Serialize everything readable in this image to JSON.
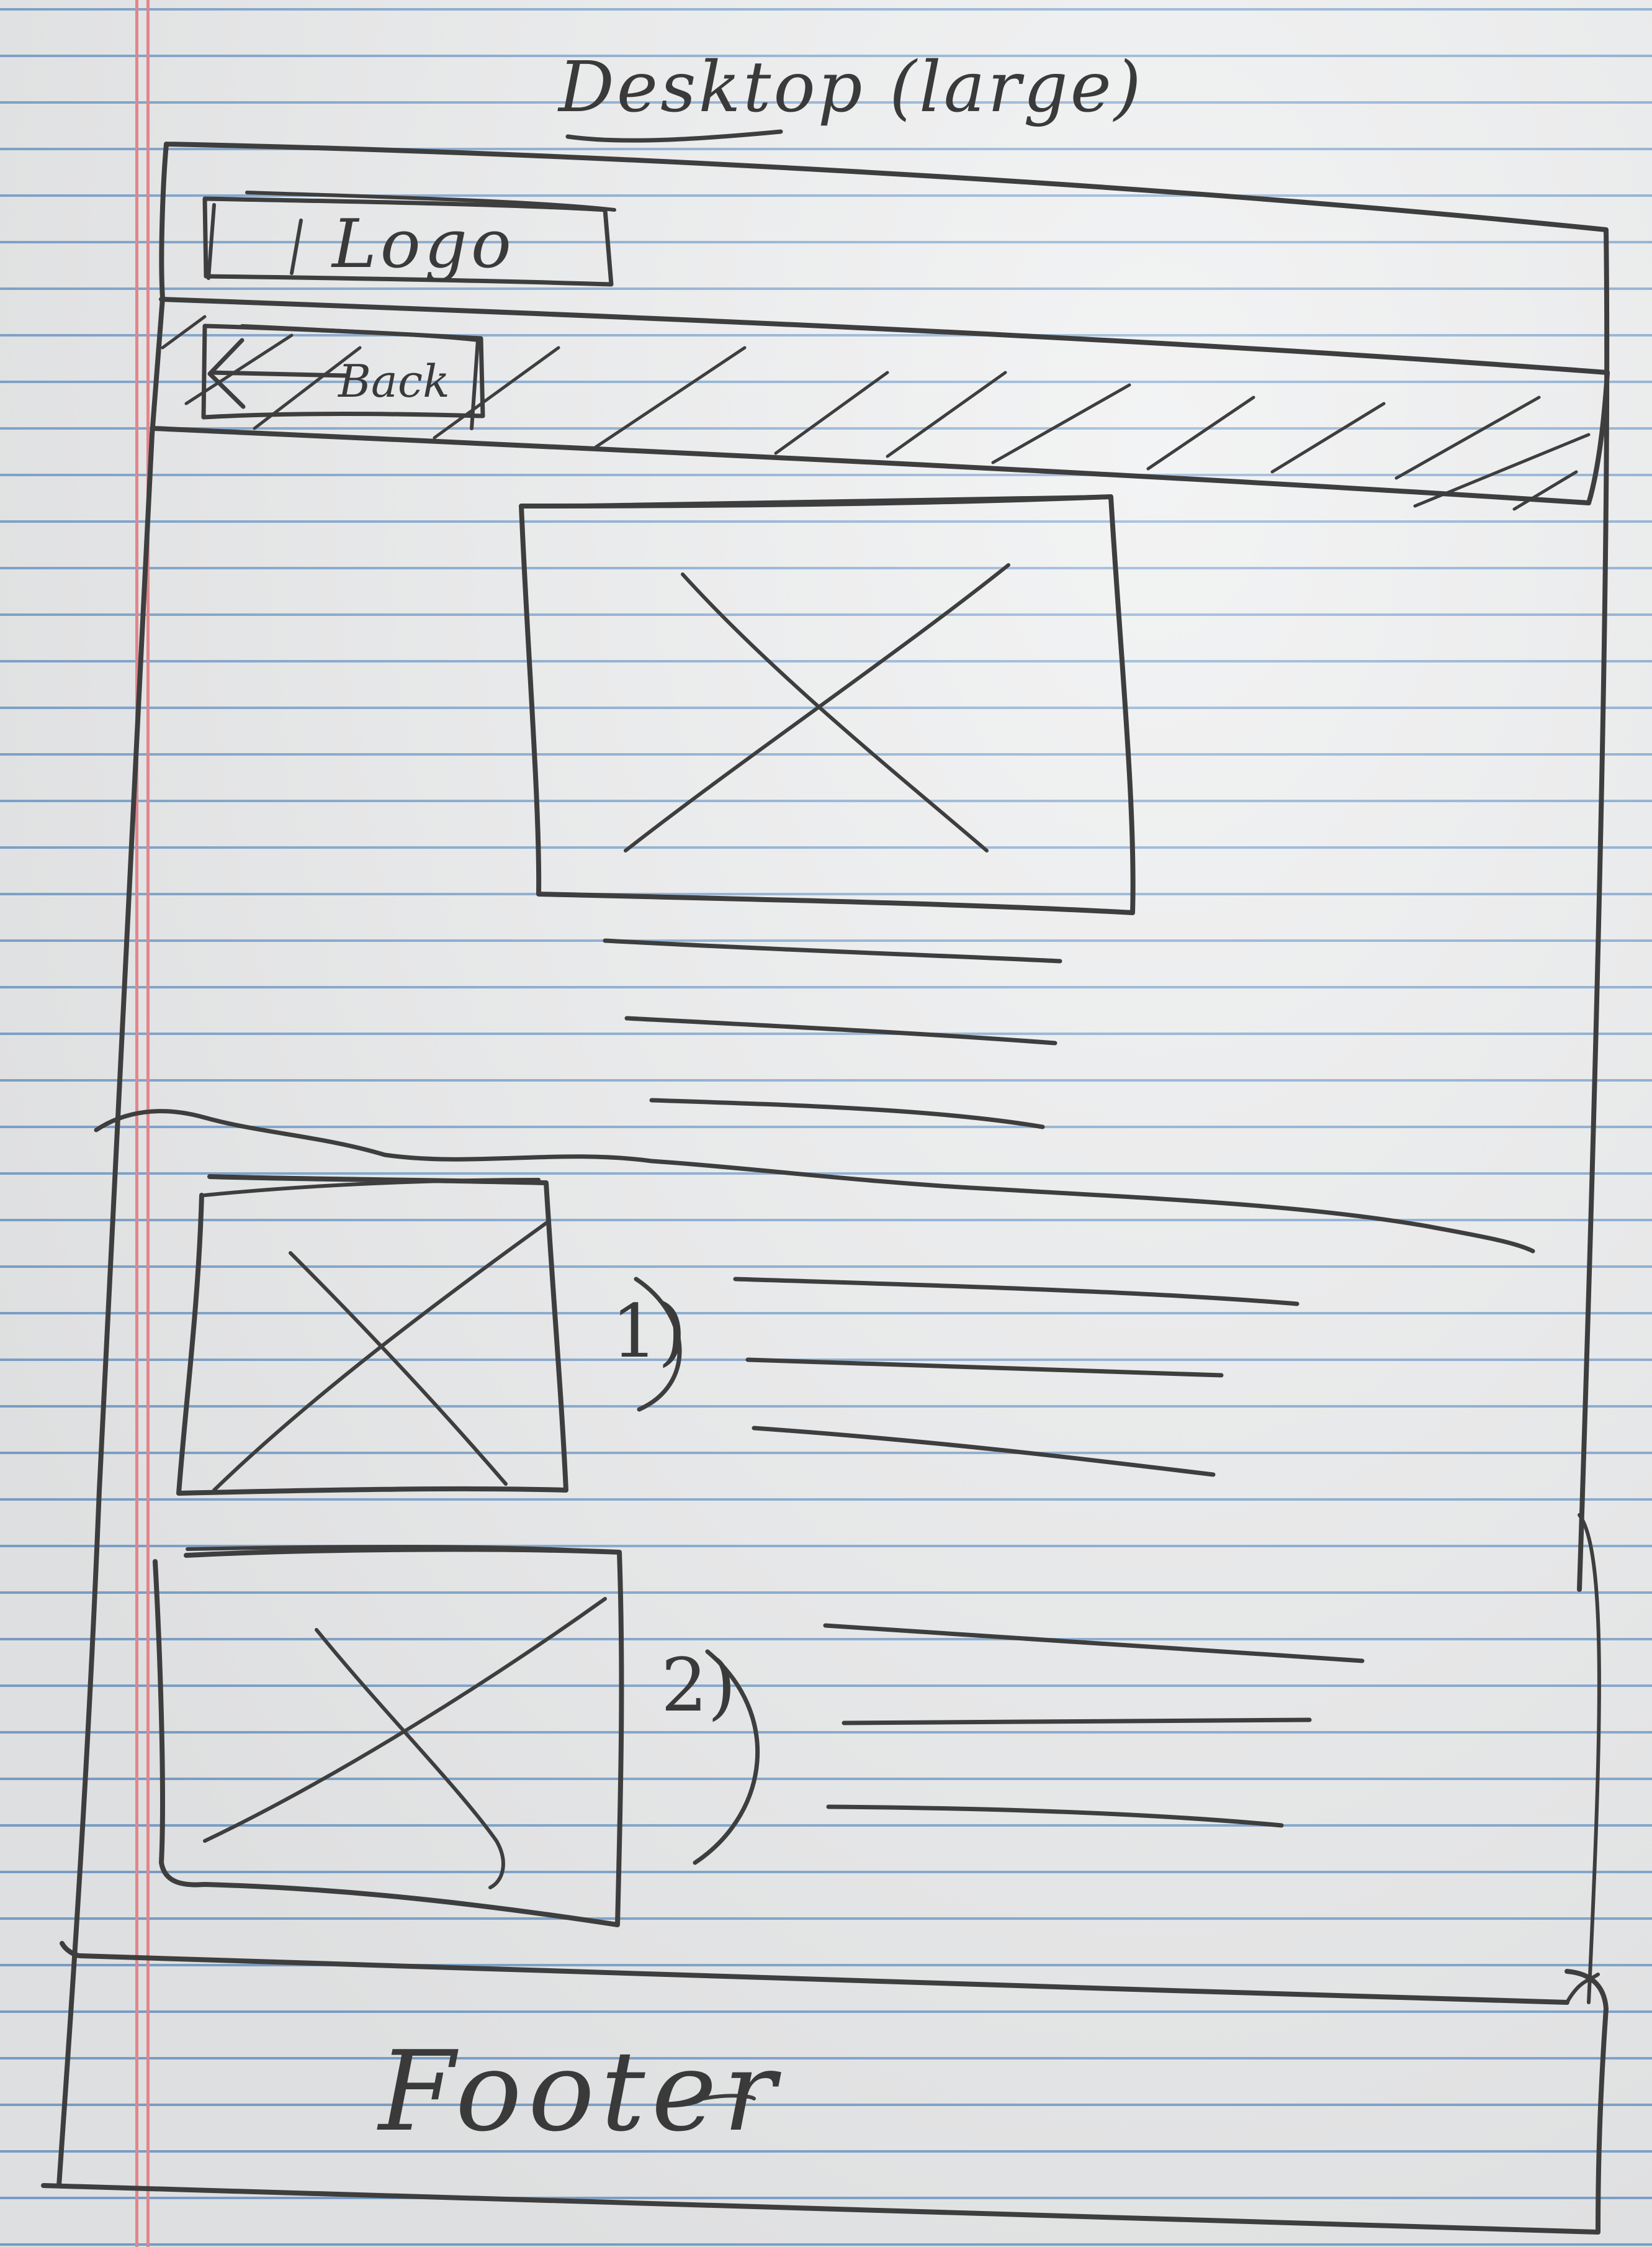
{
  "title": "Desktop (large)",
  "header": {
    "logo_label": "Logo",
    "back_label": "Back"
  },
  "list": {
    "items": [
      {
        "number": "1)"
      },
      {
        "number": "2)"
      }
    ]
  },
  "footer": {
    "label": "Footer"
  },
  "colors": {
    "pencil": "#3e3e3e",
    "paper": "#ecedee",
    "ruled_line": "#7fa6cf",
    "margin_line": "#e0868c"
  }
}
